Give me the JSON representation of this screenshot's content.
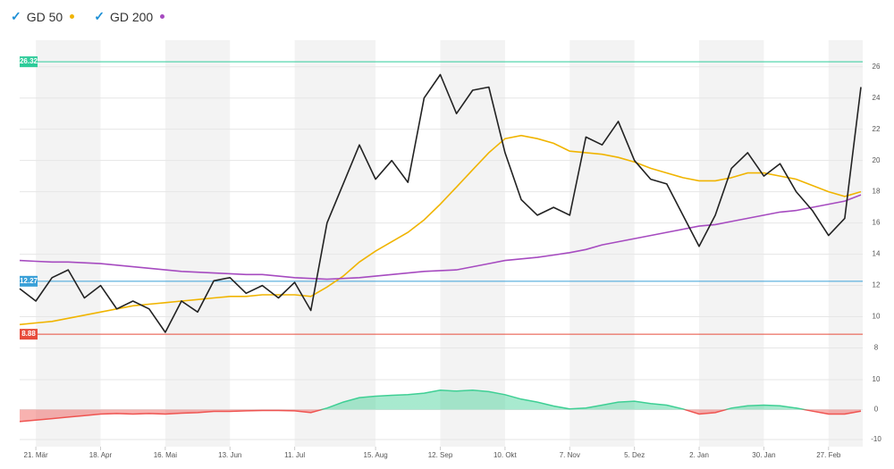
{
  "chart_data": {
    "type": "line",
    "categories": [
      null,
      "21. Mär",
      null,
      null,
      null,
      "18. Apr",
      null,
      null,
      null,
      "16. Mai",
      null,
      null,
      null,
      "13. Jun",
      null,
      null,
      null,
      "11. Jul",
      null,
      null,
      null,
      null,
      "15. Aug",
      null,
      null,
      null,
      "12. Sep",
      null,
      null,
      null,
      "10. Okt",
      null,
      null,
      null,
      "7. Nov",
      null,
      null,
      null,
      "5. Dez",
      null,
      null,
      null,
      "2. Jan",
      null,
      null,
      null,
      "30. Jan",
      null,
      null,
      null,
      "27. Feb",
      null,
      null
    ],
    "price": {
      "color": "#222222",
      "values": [
        11.8,
        11.0,
        12.5,
        13.0,
        11.2,
        12.0,
        10.5,
        11.0,
        10.5,
        9.0,
        11.0,
        10.3,
        12.3,
        12.5,
        11.5,
        12.0,
        11.2,
        12.2,
        10.4,
        16.0,
        18.5,
        21.0,
        18.8,
        20.0,
        18.6,
        24.0,
        25.5,
        23.0,
        24.5,
        24.7,
        20.5,
        17.5,
        16.5,
        17.0,
        16.5,
        21.5,
        21.0,
        22.5,
        20.0,
        18.8,
        18.5,
        16.5,
        14.5,
        16.5,
        19.5,
        20.5,
        19.0,
        19.8,
        18.0,
        16.8,
        15.2,
        16.3,
        24.7
      ]
    },
    "series": [
      {
        "name": "GD 50",
        "color": "#f0b400",
        "values": [
          9.5,
          9.6,
          9.7,
          9.9,
          10.1,
          10.3,
          10.5,
          10.7,
          10.8,
          10.9,
          11.0,
          11.1,
          11.2,
          11.3,
          11.3,
          11.4,
          11.4,
          11.4,
          11.3,
          11.9,
          12.6,
          13.5,
          14.2,
          14.8,
          15.4,
          16.2,
          17.2,
          18.3,
          19.4,
          20.5,
          21.4,
          21.6,
          21.4,
          21.1,
          20.6,
          20.5,
          20.4,
          20.2,
          19.9,
          19.5,
          19.2,
          18.9,
          18.7,
          18.7,
          18.9,
          19.2,
          19.2,
          19.0,
          18.8,
          18.4,
          18.0,
          17.7,
          18.0
        ]
      },
      {
        "name": "GD 200",
        "color": "#a64bc0",
        "values": [
          13.6,
          13.55,
          13.5,
          13.5,
          13.45,
          13.4,
          13.3,
          13.2,
          13.1,
          13.0,
          12.9,
          12.85,
          12.8,
          12.75,
          12.7,
          12.7,
          12.6,
          12.5,
          12.45,
          12.4,
          12.45,
          12.5,
          12.6,
          12.7,
          12.8,
          12.9,
          12.95,
          13.0,
          13.2,
          13.4,
          13.6,
          13.7,
          13.8,
          13.95,
          14.1,
          14.3,
          14.6,
          14.8,
          15.0,
          15.2,
          15.4,
          15.6,
          15.8,
          15.9,
          16.1,
          16.3,
          16.5,
          16.7,
          16.8,
          17.0,
          17.2,
          17.4,
          17.8
        ]
      }
    ],
    "levels": [
      {
        "value": 26.32,
        "label": "26.32",
        "color": "#2ecc9a"
      },
      {
        "value": 12.27,
        "label": "12.27",
        "color": "#3aa0d8"
      },
      {
        "value": 8.88,
        "label": "8.88",
        "color": "#e74c3c"
      }
    ],
    "ylim": [
      7.4,
      27.7
    ],
    "yticks": [
      8,
      10,
      12,
      14,
      16,
      18,
      20,
      22,
      24,
      26
    ],
    "oscillator": {
      "positive_color": "#3ecf94",
      "negative_color": "#ef5350",
      "values": [
        -4,
        -3.5,
        -3,
        -2.5,
        -2,
        -1.5,
        -1.3,
        -1.5,
        -1.3,
        -1.5,
        -1.2,
        -1,
        -0.6,
        -0.6,
        -0.4,
        -0.3,
        -0.3,
        -0.4,
        -1,
        0.5,
        2.5,
        4,
        4.5,
        4.8,
        5,
        5.5,
        6.5,
        6.2,
        6.5,
        6,
        5,
        3.5,
        2.5,
        1.2,
        0.2,
        0.5,
        1.5,
        2.5,
        2.8,
        2,
        1.5,
        0.2,
        -1.5,
        -1,
        0.5,
        1.3,
        1.5,
        1.3,
        0.5,
        -0.5,
        -1.5,
        -1.5,
        -0.5
      ],
      "ylim": [
        -12.4,
        14.5
      ],
      "yticks": [
        -10,
        0,
        10
      ]
    }
  }
}
